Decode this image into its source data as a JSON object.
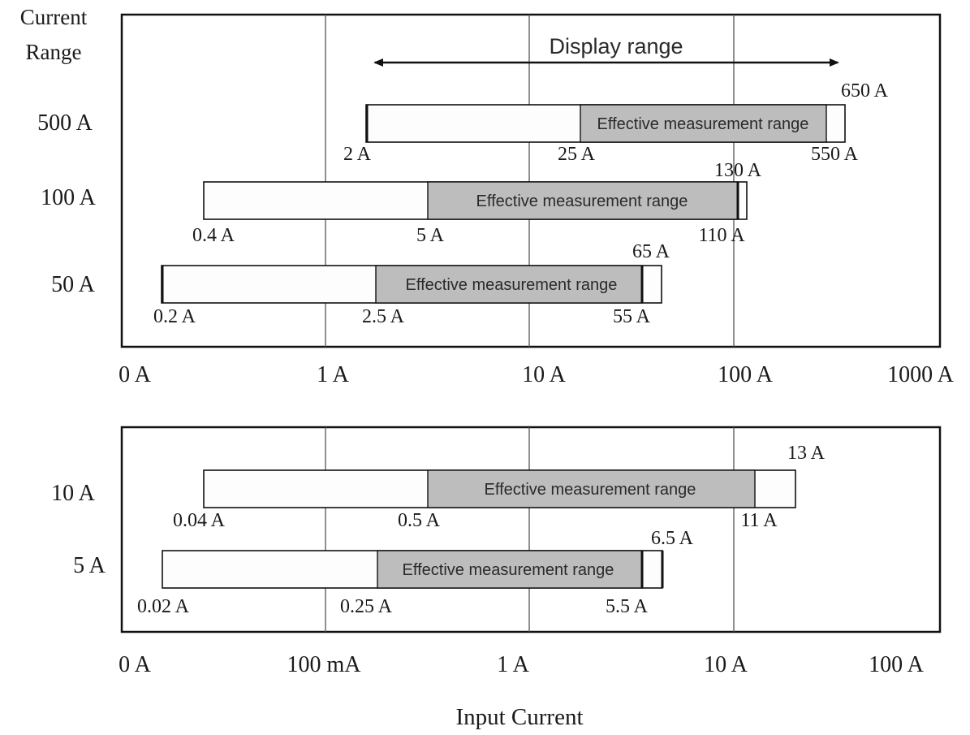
{
  "header": {
    "row_title_line1": "Current",
    "row_title_line2": "Range",
    "display_range_label": "Display range"
  },
  "x_axis_title": "Input Current",
  "effective_label": "Effective measurement range",
  "panels": [
    {
      "id": "high",
      "ticks": [
        "0 A",
        "1 A",
        "10 A",
        "100 A",
        "1000 A"
      ],
      "ranges": [
        {
          "range": "500 A",
          "display_min": "2 A",
          "effective_min": "25 A",
          "effective_max": "550 A",
          "display_max": "650 A"
        },
        {
          "range": "100 A",
          "display_min": "0.4 A",
          "effective_min": "5 A",
          "effective_max": "110 A",
          "display_max": "130 A"
        },
        {
          "range": "50 A",
          "display_min": "0.2 A",
          "effective_min": "2.5 A",
          "effective_max": "55 A",
          "display_max": "65 A"
        }
      ]
    },
    {
      "id": "low",
      "ticks": [
        "0 A",
        "100 mA",
        "1 A",
        "10 A",
        "100 A"
      ],
      "ranges": [
        {
          "range": "10 A",
          "display_min": "0.04 A",
          "effective_min": "0.5 A",
          "effective_max": "11 A",
          "display_max": "13 A"
        },
        {
          "range": "5 A",
          "display_min": "0.02 A",
          "effective_min": "0.25 A",
          "effective_max": "5.5 A",
          "display_max": "6.5 A"
        }
      ]
    }
  ]
}
